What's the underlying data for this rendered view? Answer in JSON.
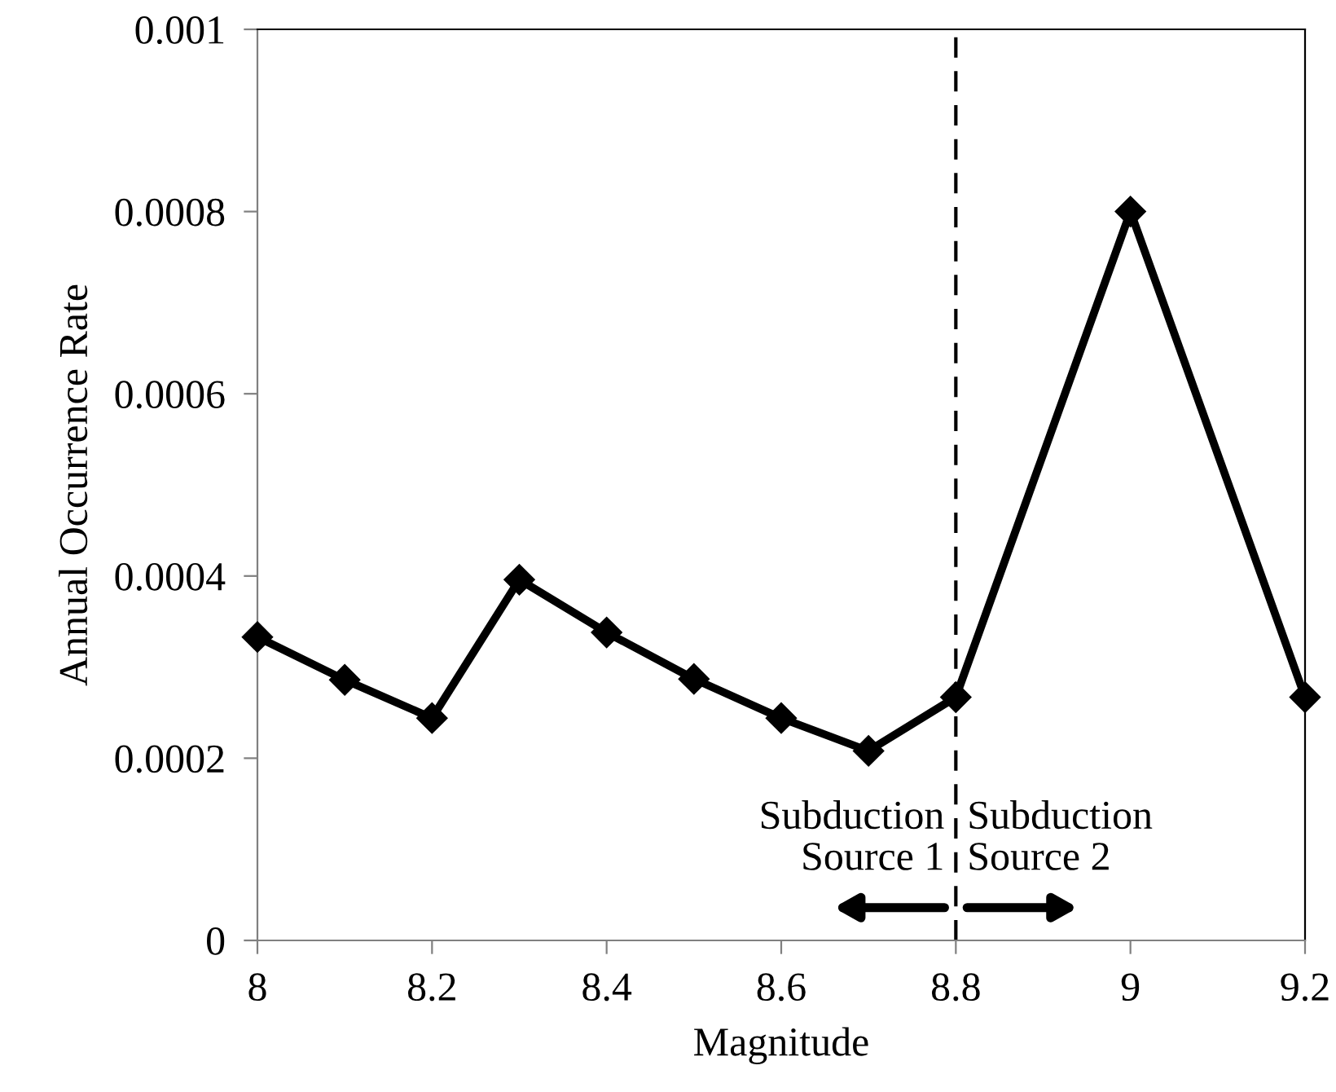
{
  "chart_data": {
    "type": "line",
    "xlabel": "Magnitude",
    "ylabel": "Annual Occurrence Rate",
    "x": [
      8.0,
      8.1,
      8.2,
      8.3,
      8.4,
      8.5,
      8.6,
      8.7,
      8.8,
      9.0,
      9.2
    ],
    "series": [
      {
        "color": "#000000",
        "values": [
          0.000333,
          0.000286,
          0.000244,
          0.000396,
          0.000338,
          0.000287,
          0.000244,
          0.000208,
          0.000267,
          0.0008,
          0.000267
        ]
      }
    ],
    "xlim": [
      8,
      9.2
    ],
    "xticks": [
      8,
      8.2,
      8.4,
      8.6,
      8.8,
      9,
      9.2
    ],
    "ylim": [
      0,
      0.001
    ],
    "yticks": [
      0,
      0.0002,
      0.0004,
      0.0006,
      0.0008,
      0.001
    ],
    "marker": "diamond",
    "line_style": "solid",
    "grid": false,
    "legend": false,
    "ref_lines": [
      {
        "axis": "x",
        "value": 8.8,
        "color": "#000000",
        "line_style": "dashed"
      }
    ],
    "annotations": [
      "Subduction\nSource 1",
      "Subduction\nSource 2"
    ]
  }
}
